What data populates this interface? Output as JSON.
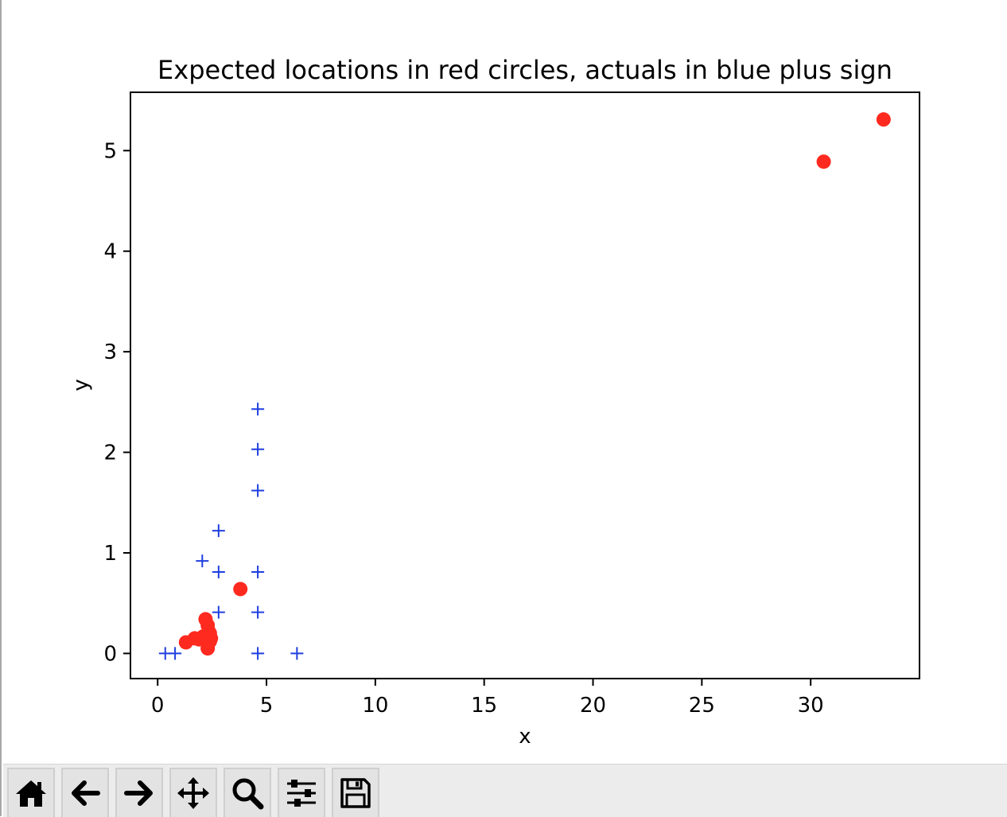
{
  "window": {},
  "chart_data": {
    "type": "scatter",
    "title": "Expected locations in red circles, actuals in blue plus sign",
    "xlabel": "x",
    "ylabel": "y",
    "xlim": [
      -1.25,
      35.0
    ],
    "ylim": [
      -0.25,
      5.58
    ],
    "xticks": [
      0,
      5,
      10,
      15,
      20,
      25,
      30
    ],
    "yticks": [
      0,
      1,
      2,
      3,
      4,
      5
    ],
    "xtick_labels": [
      "0",
      "5",
      "10",
      "15",
      "20",
      "25",
      "30"
    ],
    "ytick_labels": [
      "0",
      "1",
      "2",
      "3",
      "4",
      "5"
    ],
    "grid": false,
    "legend": "none",
    "series": [
      {
        "marker": "circle",
        "color": "#ff2a1f",
        "points": [
          [
            1.3,
            0.11
          ],
          [
            1.7,
            0.15
          ],
          [
            1.9,
            0.14
          ],
          [
            2.1,
            0.17
          ],
          [
            2.2,
            0.34
          ],
          [
            2.3,
            0.28
          ],
          [
            2.35,
            0.22
          ],
          [
            2.4,
            0.2
          ],
          [
            2.4,
            0.12
          ],
          [
            2.45,
            0.15
          ],
          [
            2.3,
            0.05
          ],
          [
            3.8,
            0.64
          ],
          [
            30.6,
            4.89
          ],
          [
            33.35,
            5.31
          ]
        ]
      },
      {
        "marker": "plus",
        "color": "#1f3fe0",
        "points": [
          [
            0.35,
            0.0
          ],
          [
            0.8,
            0.0
          ],
          [
            2.05,
            0.92
          ],
          [
            2.8,
            1.22
          ],
          [
            2.8,
            0.81
          ],
          [
            2.8,
            0.41
          ],
          [
            4.6,
            2.43
          ],
          [
            4.6,
            2.03
          ],
          [
            4.6,
            1.62
          ],
          [
            4.6,
            0.81
          ],
          [
            4.6,
            0.41
          ],
          [
            4.6,
            0.0
          ],
          [
            6.4,
            0.0
          ]
        ]
      }
    ]
  },
  "toolbar": {
    "buttons": [
      {
        "icon": "home-icon"
      },
      {
        "icon": "back-arrow-icon"
      },
      {
        "icon": "forward-arrow-icon"
      },
      {
        "icon": "pan-icon"
      },
      {
        "icon": "zoom-icon"
      },
      {
        "icon": "configure-subplots-icon"
      },
      {
        "icon": "save-icon"
      }
    ]
  }
}
